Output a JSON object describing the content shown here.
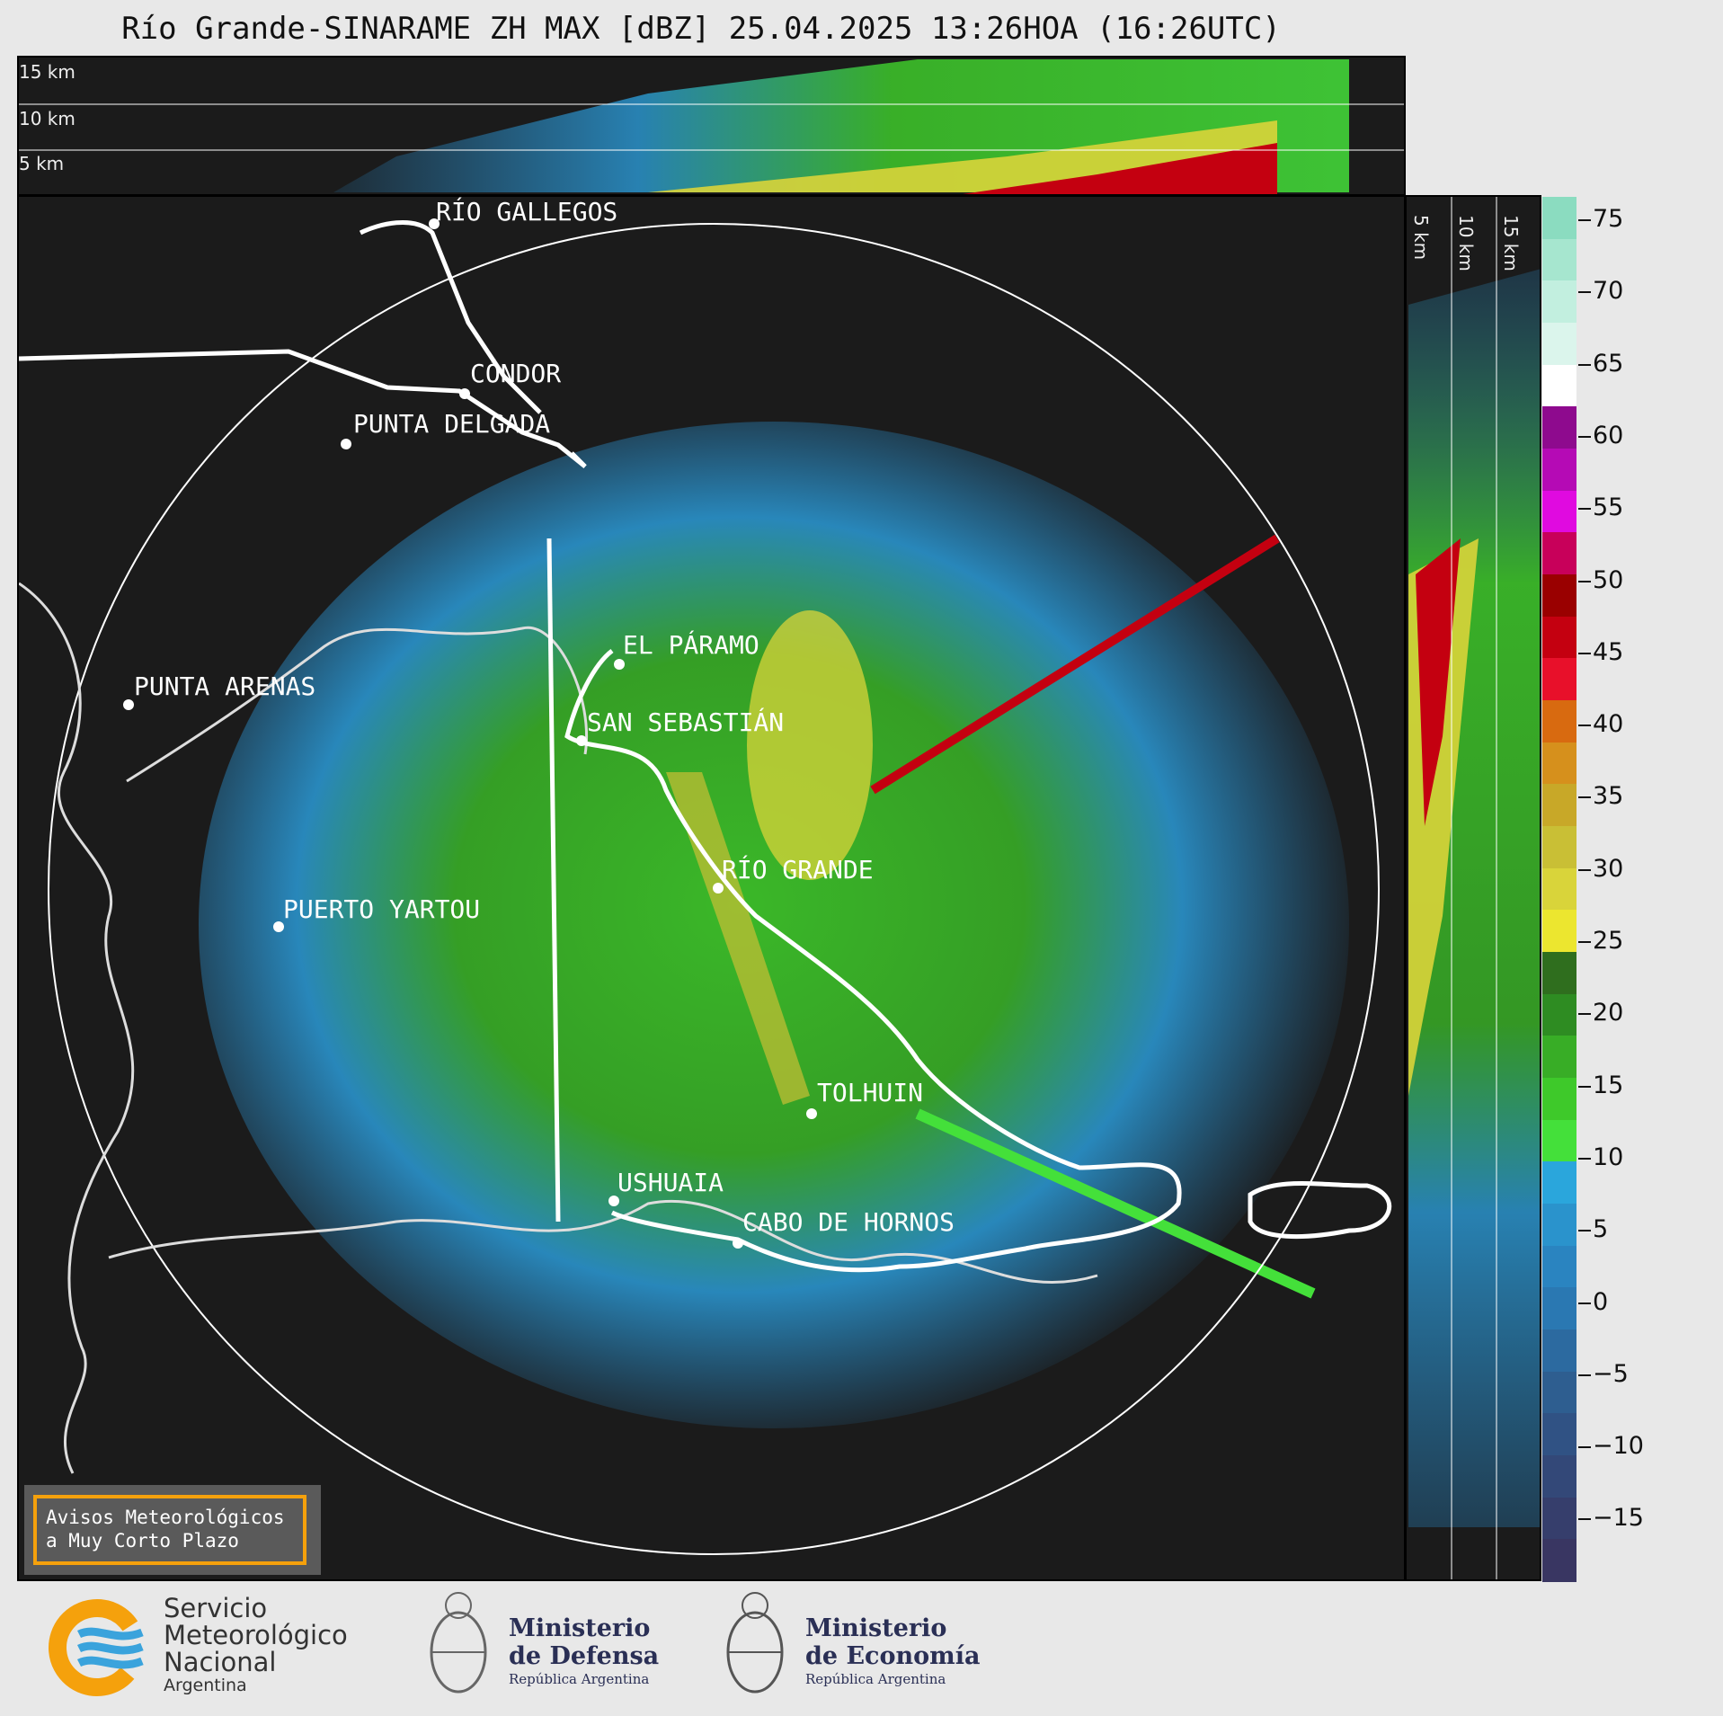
{
  "title": "Río Grande-SINARAME ZH MAX [dBZ] 25.04.2025 13:26HOA (16:26UTC)",
  "top_panel": {
    "altitudes": [
      "15 km",
      "10 km",
      "5 km"
    ]
  },
  "side_panel": {
    "altitudes": [
      "5 km",
      "10 km",
      "15 km"
    ]
  },
  "colorbar": {
    "unit": "dBZ",
    "ticks": [
      "75",
      "70",
      "65",
      "60",
      "55",
      "50",
      "45",
      "40",
      "35",
      "30",
      "25",
      "20",
      "15",
      "10",
      "5",
      "0",
      "−5",
      "−10",
      "−15"
    ],
    "colors": [
      "#8bdcc0",
      "#a6e6cf",
      "#c2efdf",
      "#dbf5ec",
      "#ffffff",
      "#8e0a8e",
      "#b50ab5",
      "#e00ae0",
      "#c8005a",
      "#9a0000",
      "#c40010",
      "#e8102a",
      "#d86a10",
      "#d6901c",
      "#c8a828",
      "#c9bf35",
      "#d9d43a",
      "#ece62f",
      "#2f6e1e",
      "#2e8c22",
      "#38ad26",
      "#3ec92a",
      "#44e03a",
      "#2aa6dc",
      "#2a93cc",
      "#2a84c0",
      "#2a78b2",
      "#2c6aa0",
      "#2e5e90",
      "#305284",
      "#334878",
      "#363e6c",
      "#393662"
    ]
  },
  "cities": [
    {
      "name": "RÍO GALLEGOS"
    },
    {
      "name": "CÓNDOR"
    },
    {
      "name": "PUNTA DELGADA"
    },
    {
      "name": "PUNTA ARENAS"
    },
    {
      "name": "EL PÁRAMO"
    },
    {
      "name": "SAN SEBASTIÁN"
    },
    {
      "name": "RÍO GRANDE"
    },
    {
      "name": "PUERTO YARTOU"
    },
    {
      "name": "TOLHUIN"
    },
    {
      "name": "USHUAIA"
    },
    {
      "name": "CABO DE HORNOS"
    }
  ],
  "warning_box": {
    "line1": "Avisos Meteorológicos",
    "line2": "a Muy Corto Plazo"
  },
  "logos": {
    "smn": {
      "line1": "Servicio",
      "line2": "Meteorológico",
      "line3": "Nacional",
      "line4": "Argentina"
    },
    "defensa": {
      "line1": "Ministerio",
      "line2": "de Defensa",
      "line3": "República Argentina"
    },
    "economia": {
      "line1": "Ministerio",
      "line2": "de Economía",
      "line3": "República Argentina"
    },
    "brand_colors": {
      "smn_orange": "#f5a10c",
      "smn_blue": "#3aa3dc",
      "ministry_navy": "#2a2f55"
    }
  }
}
